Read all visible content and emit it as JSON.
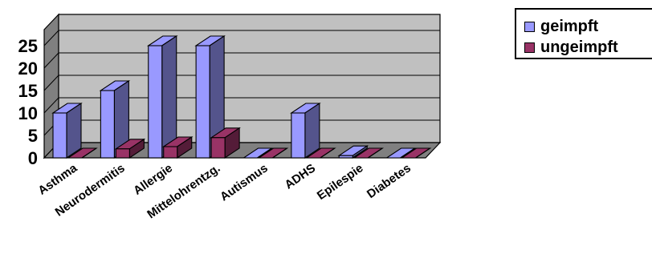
{
  "chart_data": {
    "type": "bar",
    "categories": [
      "Asthma",
      "Neurodermitis",
      "Allergie",
      "Mittelohrentzg.",
      "Autismus",
      "ADHS",
      "Epilespie",
      "Diabetes"
    ],
    "series": [
      {
        "name": "geimpft",
        "values": [
          10,
          15,
          25,
          25,
          0,
          10,
          0.5,
          0
        ]
      },
      {
        "name": "ungeimpft",
        "values": [
          0,
          2,
          2.5,
          4.5,
          0,
          0,
          0,
          0
        ]
      }
    ],
    "ylim": [
      0,
      27
    ],
    "yticks": [
      "0",
      "5",
      "10",
      "15",
      "20",
      "25"
    ],
    "grid": true,
    "legend_position": "top-right",
    "colors": {
      "geimpft": "#9999ff",
      "ungeimpft": "#993366",
      "wall": "#c0c0c0",
      "floor": "#808080"
    }
  }
}
